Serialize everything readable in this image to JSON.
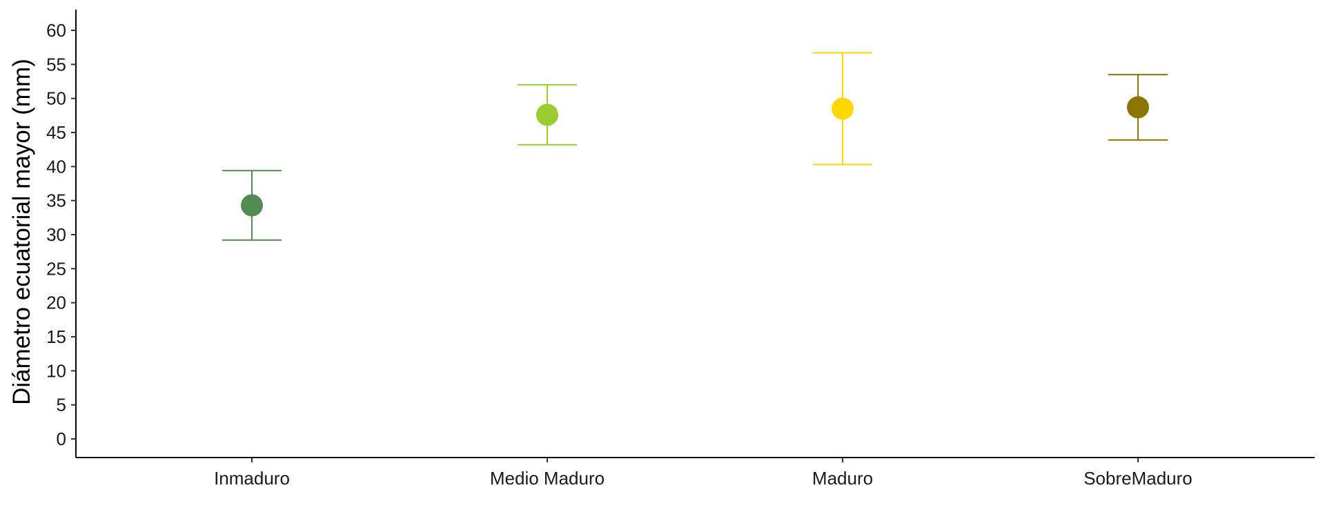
{
  "chart_data": {
    "type": "scatter",
    "ylabel": "Diámetro ecuatorial mayor (mm)",
    "xlabel": "",
    "title": "",
    "categories": [
      "Inmaduro",
      "Medio Maduro",
      "Maduro",
      "SobreMaduro"
    ],
    "points": [
      {
        "category": "Inmaduro",
        "mean": 34.3,
        "lower": 29.2,
        "upper": 39.4,
        "color": "#548B54"
      },
      {
        "category": "Medio Maduro",
        "mean": 47.6,
        "lower": 43.2,
        "upper": 52.0,
        "color": "#9ACD32"
      },
      {
        "category": "Maduro",
        "mean": 48.5,
        "lower": 40.3,
        "upper": 56.7,
        "color": "#FFD700"
      },
      {
        "category": "SobreMaduro",
        "mean": 48.7,
        "lower": 43.9,
        "upper": 53.5,
        "color": "#8B7500"
      }
    ],
    "yticks": [
      0,
      5,
      10,
      15,
      20,
      25,
      30,
      35,
      40,
      45,
      50,
      55,
      60
    ],
    "ylim": [
      -2.7,
      63.0
    ],
    "grid": false,
    "legend": "none"
  }
}
